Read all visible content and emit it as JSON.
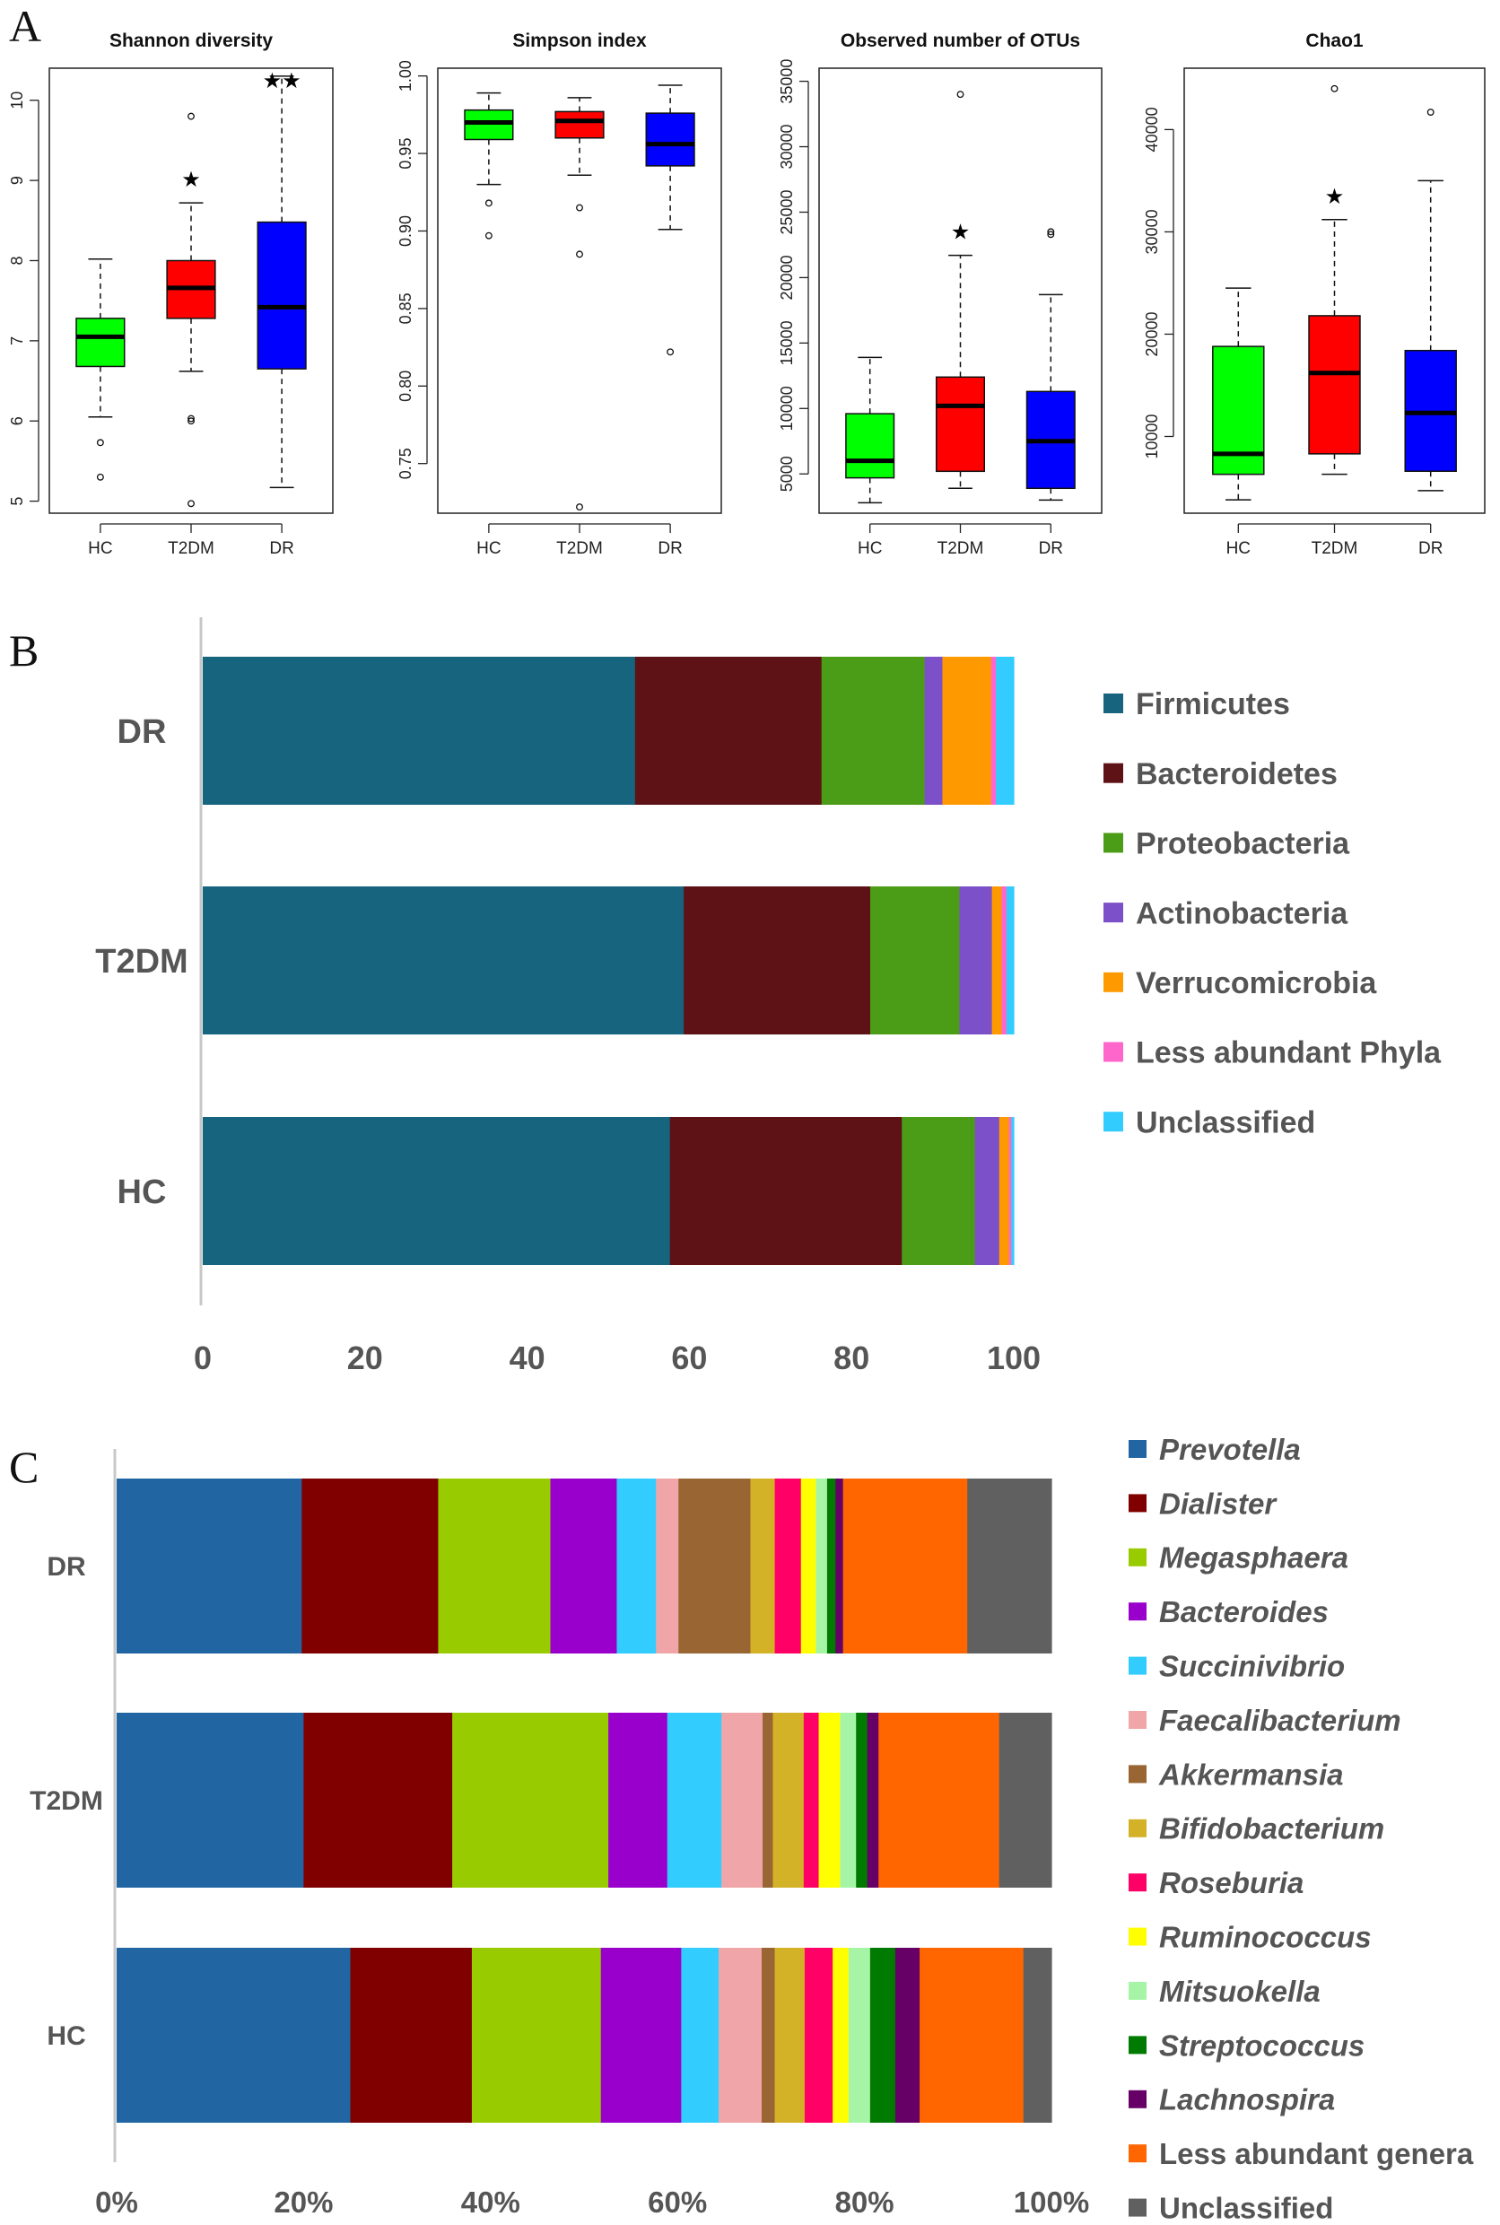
{
  "panels": {
    "a": "A",
    "b": "B",
    "c": "C"
  },
  "chart_data": [
    {
      "type": "box",
      "title": "Shannon diversity",
      "categories": [
        "HC",
        "T2DM",
        "DR"
      ],
      "colors": [
        "#00ff00",
        "#ff0000",
        "#0000ff"
      ],
      "ylim": [
        4.85,
        10.4
      ],
      "yticks": [
        5,
        6,
        7,
        8,
        9,
        10
      ],
      "boxes": [
        {
          "group": "HC",
          "whisker_low": 6.05,
          "q1": 6.68,
          "median": 7.05,
          "q3": 7.28,
          "whisker_high": 8.02,
          "outliers": [
            5.3,
            5.73
          ]
        },
        {
          "group": "T2DM",
          "whisker_low": 6.62,
          "q1": 7.28,
          "median": 7.66,
          "q3": 8.0,
          "whisker_high": 8.72,
          "outliers": [
            6.0,
            6.03,
            9.8,
            4.97
          ]
        },
        {
          "group": "DR",
          "whisker_low": 5.17,
          "q1": 6.65,
          "median": 7.42,
          "q3": 8.48,
          "whisker_high": 10.3,
          "outliers": []
        }
      ],
      "annotations": [
        {
          "group": "T2DM",
          "text": "★"
        },
        {
          "group": "DR",
          "text": "★★"
        }
      ]
    },
    {
      "type": "box",
      "title": "Simpson index",
      "categories": [
        "HC",
        "T2DM",
        "DR"
      ],
      "colors": [
        "#00ff00",
        "#ff0000",
        "#0000ff"
      ],
      "ylim": [
        0.718,
        1.005
      ],
      "yticks": [
        0.75,
        0.8,
        0.85,
        0.9,
        0.95,
        1.0
      ],
      "ytick_labels": [
        "0.75",
        "0.80",
        "0.85",
        "0.90",
        "0.95",
        "1.00"
      ],
      "boxes": [
        {
          "group": "HC",
          "whisker_low": 0.93,
          "q1": 0.959,
          "median": 0.97,
          "q3": 0.978,
          "whisker_high": 0.989,
          "outliers": [
            0.918,
            0.897
          ]
        },
        {
          "group": "T2DM",
          "whisker_low": 0.936,
          "q1": 0.96,
          "median": 0.971,
          "q3": 0.977,
          "whisker_high": 0.986,
          "outliers": [
            0.915,
            0.885,
            0.722
          ]
        },
        {
          "group": "DR",
          "whisker_low": 0.901,
          "q1": 0.942,
          "median": 0.956,
          "q3": 0.976,
          "whisker_high": 0.994,
          "outliers": [
            0.822
          ]
        }
      ],
      "annotations": []
    },
    {
      "type": "box",
      "title": "Observed number of OTUs",
      "categories": [
        "HC",
        "T2DM",
        "DR"
      ],
      "colors": [
        "#00ff00",
        "#ff0000",
        "#0000ff"
      ],
      "ylim": [
        2000,
        36000
      ],
      "yticks": [
        5000,
        10000,
        15000,
        20000,
        25000,
        30000,
        35000
      ],
      "boxes": [
        {
          "group": "HC",
          "whisker_low": 2800,
          "q1": 4700,
          "median": 6000,
          "q3": 9600,
          "whisker_high": 13900,
          "outliers": []
        },
        {
          "group": "T2DM",
          "whisker_low": 3900,
          "q1": 5200,
          "median": 10200,
          "q3": 12400,
          "whisker_high": 21700,
          "outliers": [
            34000
          ]
        },
        {
          "group": "DR",
          "whisker_low": 3000,
          "q1": 3900,
          "median": 7500,
          "q3": 11300,
          "whisker_high": 18700,
          "outliers": [
            23300,
            23500
          ]
        }
      ],
      "annotations": [
        {
          "group": "T2DM",
          "text": "★"
        }
      ]
    },
    {
      "type": "box",
      "title": "Chao1",
      "categories": [
        "HC",
        "T2DM",
        "DR"
      ],
      "colors": [
        "#00ff00",
        "#ff0000",
        "#0000ff"
      ],
      "ylim": [
        2500,
        46000
      ],
      "yticks": [
        10000,
        20000,
        30000,
        40000
      ],
      "boxes": [
        {
          "group": "HC",
          "whisker_low": 3800,
          "q1": 6300,
          "median": 8300,
          "q3": 18800,
          "whisker_high": 24500,
          "outliers": []
        },
        {
          "group": "T2DM",
          "whisker_low": 6300,
          "q1": 8300,
          "median": 16200,
          "q3": 21800,
          "whisker_high": 31200,
          "outliers": [
            44000
          ]
        },
        {
          "group": "DR",
          "whisker_low": 4700,
          "q1": 6600,
          "median": 12300,
          "q3": 18400,
          "whisker_high": 35000,
          "outliers": [
            41700
          ]
        }
      ],
      "annotations": [
        {
          "group": "T2DM",
          "text": "★"
        }
      ]
    },
    {
      "type": "bar",
      "orientation": "horizontal",
      "stacked": true,
      "categories": [
        "DR",
        "T2DM",
        "HC"
      ],
      "xlim": [
        0,
        100
      ],
      "xticks": [
        "0",
        "20",
        "40",
        "60",
        "80",
        "100"
      ],
      "series": [
        {
          "name": "Firmicutes",
          "color": "#17647f",
          "values": [
            53.3,
            59.3,
            57.6
          ]
        },
        {
          "name": "Bacteroidetes",
          "color": "#5e1216",
          "values": [
            23.0,
            23.0,
            28.6
          ]
        },
        {
          "name": "Proteobacteria",
          "color": "#4b9c17",
          "values": [
            12.7,
            11.0,
            9.0
          ]
        },
        {
          "name": "Actinobacteria",
          "color": "#7b50c8",
          "values": [
            2.2,
            4.0,
            3.0
          ]
        },
        {
          "name": "Verrucomicrobia",
          "color": "#ff9900",
          "values": [
            6.0,
            1.2,
            1.2
          ]
        },
        {
          "name": "Less abundant Phyla",
          "color": "#ff66cc",
          "values": [
            0.6,
            0.6,
            0.3
          ]
        },
        {
          "name": "Unclassified",
          "color": "#33ccff",
          "values": [
            2.2,
            0.9,
            0.3
          ]
        }
      ]
    },
    {
      "type": "bar",
      "orientation": "horizontal",
      "stacked": true,
      "categories": [
        "DR",
        "T2DM",
        "HC"
      ],
      "xlim": [
        0,
        100
      ],
      "xticks": [
        "0%",
        "20%",
        "40%",
        "60%",
        "80%",
        "100%"
      ],
      "series": [
        {
          "name": "Prevotella",
          "color": "#2166a2",
          "values": [
            19.8,
            20.0,
            25.0
          ]
        },
        {
          "name": "Dialister",
          "color": "#800000",
          "values": [
            14.6,
            15.9,
            13.0
          ]
        },
        {
          "name": "Megasphaera",
          "color": "#99cc00",
          "values": [
            12.0,
            16.7,
            13.8
          ]
        },
        {
          "name": "Bacteroides",
          "color": "#9900cc",
          "values": [
            7.1,
            6.3,
            8.6
          ]
        },
        {
          "name": "Succinivibrio",
          "color": "#33ccff",
          "values": [
            4.2,
            5.8,
            4.0
          ]
        },
        {
          "name": "Faecalibacterium",
          "color": "#f0a6a8",
          "values": [
            2.4,
            4.4,
            4.6
          ]
        },
        {
          "name": "Akkermansia",
          "color": "#996633",
          "values": [
            7.7,
            1.1,
            1.4
          ]
        },
        {
          "name": "Bifidobacterium",
          "color": "#d4b227",
          "values": [
            2.6,
            3.3,
            3.2
          ]
        },
        {
          "name": "Roseburia",
          "color": "#ff0066",
          "values": [
            2.8,
            1.6,
            3.0
          ]
        },
        {
          "name": "Ruminococcus",
          "color": "#ffff00",
          "values": [
            1.6,
            2.3,
            1.7
          ]
        },
        {
          "name": "Mitsuokella",
          "color": "#a6f5a6",
          "values": [
            1.2,
            1.7,
            2.3
          ]
        },
        {
          "name": "Streptococcus",
          "color": "#007a00",
          "values": [
            0.9,
            1.2,
            2.7
          ]
        },
        {
          "name": "Lachnospira",
          "color": "#660066",
          "values": [
            0.8,
            1.2,
            2.6
          ]
        },
        {
          "name": "Less abundant genera",
          "color": "#ff6600",
          "values": [
            13.3,
            12.9,
            11.1
          ]
        },
        {
          "name": "Unclassified",
          "color": "#606060",
          "values": [
            9.0,
            5.6,
            3.0
          ]
        }
      ]
    }
  ]
}
